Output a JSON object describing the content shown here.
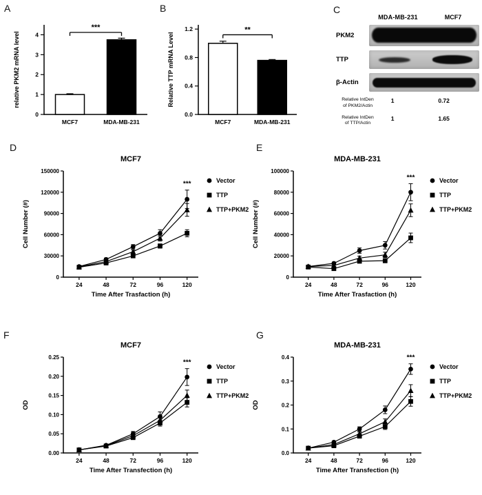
{
  "panel_labels": {
    "a": "A",
    "b": "B",
    "c": "C",
    "d": "D",
    "e": "E",
    "f": "F",
    "g": "G"
  },
  "western_blot": {
    "col_headers": [
      "MDA-MB-231",
      "MCF7"
    ],
    "row_labels": [
      "PKM2",
      "TTP",
      "β-Actin"
    ],
    "quantification": [
      {
        "label": [
          "Relative IntDen",
          "of PKM2/Actin"
        ],
        "values": [
          "1",
          "0.72"
        ]
      },
      {
        "label": [
          "Relative IntDen",
          "of TTP/Actin"
        ],
        "values": [
          "1",
          "1.65"
        ]
      }
    ]
  },
  "chart_data": [
    {
      "id": "A",
      "type": "bar",
      "title": "",
      "ylabel": "relative PKM2 mRNA level",
      "xlabel": "",
      "categories": [
        "MCF7",
        "MDA-MB-231"
      ],
      "values": [
        1.0,
        3.75
      ],
      "errors": [
        0.04,
        0.08
      ],
      "bar_colors": [
        "#ffffff",
        "#000000"
      ],
      "yticks": [
        "0",
        "1",
        "2",
        "3",
        "4"
      ],
      "ylim": [
        0,
        4.5
      ],
      "significance": "***",
      "sig_y": 4.12
    },
    {
      "id": "B",
      "type": "bar",
      "title": "",
      "ylabel": "Relative TTP mRNA Level",
      "xlabel": "",
      "categories": [
        "MCF7",
        "MDA-MB-231"
      ],
      "values": [
        1.0,
        0.76
      ],
      "errors": [
        0.03,
        0.012
      ],
      "bar_colors": [
        "#ffffff",
        "#000000"
      ],
      "yticks": [
        "0.0",
        "0.4",
        "0.8",
        "1.2"
      ],
      "ylim": [
        0,
        1.26
      ],
      "significance": "**",
      "sig_y": 1.12
    },
    {
      "id": "D",
      "type": "line",
      "title": "MCF7",
      "ylabel": "Cell Number (#)",
      "xlabel": "Time After Trasfaction (h)",
      "x": [
        24,
        48,
        72,
        96,
        120
      ],
      "yticks": [
        "0",
        "30000",
        "60000",
        "90000",
        "120000",
        "150000"
      ],
      "ylim": [
        0,
        150000
      ],
      "significance": "***",
      "legend_position": "right",
      "series": [
        {
          "name": "Vector",
          "marker": "circle",
          "values": [
            15000,
            25000,
            43000,
            62000,
            110000
          ],
          "errors": [
            1500,
            2000,
            3000,
            5000,
            13000
          ]
        },
        {
          "name": "TTP",
          "marker": "square",
          "values": [
            14000,
            20000,
            30000,
            44000,
            62000
          ],
          "errors": [
            1200,
            1500,
            2000,
            3000,
            5000
          ]
        },
        {
          "name": "TTP+PKM2",
          "marker": "triangle",
          "values": [
            14500,
            22000,
            36000,
            55000,
            95000
          ],
          "errors": [
            1200,
            1800,
            2500,
            4000,
            9000
          ]
        }
      ]
    },
    {
      "id": "E",
      "type": "line",
      "title": "MDA-MB-231",
      "ylabel": "Cell Number (#)",
      "xlabel": "Time After Trasfaction (h)",
      "x": [
        24,
        48,
        72,
        96,
        120
      ],
      "yticks": [
        "0",
        "20000",
        "40000",
        "60000",
        "80000",
        "100000"
      ],
      "ylim": [
        0,
        100000
      ],
      "significance": "***",
      "legend_position": "right",
      "series": [
        {
          "name": "Vector",
          "marker": "circle",
          "values": [
            10000,
            13000,
            25000,
            30000,
            80000
          ],
          "errors": [
            1000,
            1200,
            2500,
            3500,
            8000
          ]
        },
        {
          "name": "TTP",
          "marker": "square",
          "values": [
            9500,
            8000,
            15000,
            15500,
            37000
          ],
          "errors": [
            900,
            1000,
            1800,
            2000,
            4500
          ]
        },
        {
          "name": "TTP+PKM2",
          "marker": "triangle",
          "values": [
            10000,
            11000,
            18000,
            21000,
            63000
          ],
          "errors": [
            900,
            1100,
            1800,
            2500,
            6000
          ]
        }
      ]
    },
    {
      "id": "F",
      "type": "line",
      "title": "MCF7",
      "ylabel": "OD",
      "xlabel": "Time After Transfection (h)",
      "x": [
        24,
        48,
        72,
        96,
        120
      ],
      "yticks": [
        "0.00",
        "0.05",
        "0.10",
        "0.15",
        "0.20",
        "0.25"
      ],
      "ylim": [
        0,
        0.25
      ],
      "significance": "***",
      "legend_position": "right",
      "series": [
        {
          "name": "Vector",
          "marker": "circle",
          "values": [
            0.008,
            0.02,
            0.05,
            0.095,
            0.198
          ],
          "errors": [
            0.002,
            0.003,
            0.006,
            0.012,
            0.022
          ]
        },
        {
          "name": "TTP",
          "marker": "square",
          "values": [
            0.008,
            0.018,
            0.04,
            0.078,
            0.132
          ],
          "errors": [
            0.002,
            0.003,
            0.005,
            0.008,
            0.012
          ]
        },
        {
          "name": "TTP+PKM2",
          "marker": "triangle",
          "values": [
            0.008,
            0.019,
            0.045,
            0.085,
            0.15
          ],
          "errors": [
            0.002,
            0.003,
            0.005,
            0.009,
            0.014
          ]
        }
      ]
    },
    {
      "id": "G",
      "type": "line",
      "title": "MDA-MB-231",
      "ylabel": "OD",
      "xlabel": "Time After Transfection (h)",
      "x": [
        24,
        48,
        72,
        96,
        120
      ],
      "yticks": [
        "0.0",
        "0.1",
        "0.2",
        "0.3",
        "0.4"
      ],
      "ylim": [
        0,
        0.4
      ],
      "significance": "***",
      "legend_position": "right",
      "series": [
        {
          "name": "Vector",
          "marker": "circle",
          "values": [
            0.02,
            0.045,
            0.1,
            0.18,
            0.35
          ],
          "errors": [
            0.004,
            0.005,
            0.009,
            0.016,
            0.022
          ]
        },
        {
          "name": "TTP",
          "marker": "square",
          "values": [
            0.02,
            0.03,
            0.07,
            0.11,
            0.215
          ],
          "errors": [
            0.003,
            0.004,
            0.007,
            0.012,
            0.02
          ]
        },
        {
          "name": "TTP+PKM2",
          "marker": "triangle",
          "values": [
            0.02,
            0.035,
            0.08,
            0.13,
            0.26
          ],
          "errors": [
            0.003,
            0.004,
            0.007,
            0.012,
            0.025
          ]
        }
      ]
    }
  ]
}
